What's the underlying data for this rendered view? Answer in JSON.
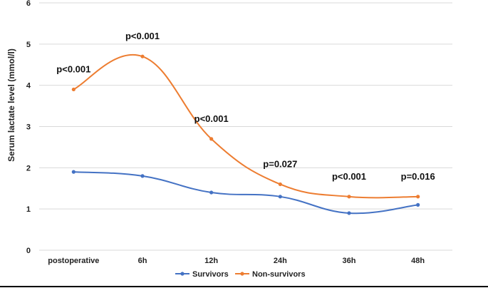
{
  "chart_data": {
    "type": "line",
    "categories": [
      "postoperative",
      "6h",
      "12h",
      "24h",
      "36h",
      "48h"
    ],
    "series": [
      {
        "name": "Survivors",
        "color": "#4472c4",
        "values": [
          1.9,
          1.8,
          1.4,
          1.3,
          0.9,
          1.1
        ]
      },
      {
        "name": "Non-survivors",
        "color": "#ed7d31",
        "values": [
          3.9,
          4.7,
          2.7,
          1.6,
          1.3,
          1.3
        ]
      }
    ],
    "annotations": [
      "p<0.001",
      "p<0.001",
      "p<0.001",
      "p=0.027",
      "p<0.001",
      "p=0.016"
    ],
    "ylabel": "Serum lactate level (mmol/l)",
    "xlabel": "",
    "ylim": [
      0,
      6
    ],
    "yticks": [
      "0",
      "1",
      "2",
      "3",
      "4",
      "5",
      "6"
    ],
    "grid": true,
    "smooth": true,
    "legend_position": "bottom"
  }
}
